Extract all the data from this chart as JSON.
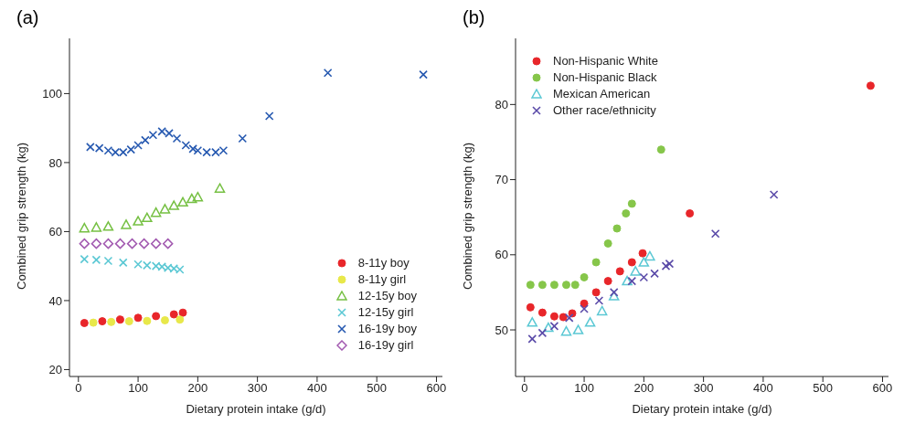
{
  "chart_data": [
    {
      "type": "scatter",
      "title": "(a)",
      "xlabel": "Dietary protein intake (g/d)",
      "ylabel": "Combined grip strength (kg)",
      "xlim": [
        -15,
        610
      ],
      "xticks": [
        0,
        100,
        200,
        300,
        400,
        500,
        600
      ],
      "ylim": [
        18,
        116
      ],
      "yticks": [
        20,
        40,
        60,
        80,
        100
      ],
      "grid": false,
      "legend": "bottom right",
      "series": [
        {
          "name": "8-11y boy",
          "color": "#e8262a",
          "marker": "circle",
          "x": [
            10,
            40,
            70,
            100,
            130,
            160,
            175
          ],
          "values": [
            33.5,
            34,
            34.5,
            35,
            35.5,
            36,
            36.5
          ]
        },
        {
          "name": "8-11y girl",
          "color": "#e8e84a",
          "marker": "circle",
          "x": [
            25,
            55,
            85,
            115,
            145,
            170
          ],
          "values": [
            33.6,
            33.8,
            34,
            34.1,
            34.3,
            34.5
          ]
        },
        {
          "name": "12-15y boy",
          "color": "#76c043",
          "marker": "triangle",
          "x": [
            10,
            30,
            50,
            80,
            100,
            115,
            130,
            145,
            160,
            175,
            190,
            200,
            237
          ],
          "values": [
            61,
            61.2,
            61.5,
            62,
            63,
            64,
            65.5,
            66.5,
            67.5,
            68.5,
            69.5,
            70,
            72.5
          ]
        },
        {
          "name": "12-15y girl",
          "color": "#5bc8d4",
          "marker": "cross",
          "x": [
            10,
            30,
            50,
            75,
            100,
            115,
            130,
            140,
            150,
            160,
            170
          ],
          "values": [
            52,
            51.8,
            51.5,
            51,
            50.5,
            50.2,
            50,
            49.8,
            49.5,
            49.3,
            49
          ]
        },
        {
          "name": "16-19y boy",
          "color": "#2558b0",
          "marker": "cross",
          "x": [
            20,
            35,
            50,
            62,
            75,
            88,
            100,
            112,
            125,
            140,
            152,
            165,
            180,
            192,
            200,
            215,
            230,
            243,
            275,
            320,
            418,
            578
          ],
          "values": [
            84.5,
            84.2,
            83.5,
            83,
            83,
            83.8,
            85,
            86.5,
            88,
            89,
            88.5,
            87,
            85,
            84,
            83.5,
            83,
            83,
            83.5,
            87,
            93.5,
            106,
            105.5
          ]
        },
        {
          "name": "16-19y girl",
          "color": "#a25ab0",
          "marker": "diamond",
          "x": [
            10,
            30,
            50,
            70,
            90,
            110,
            130,
            150
          ],
          "values": [
            56.5,
            56.5,
            56.5,
            56.5,
            56.5,
            56.5,
            56.5,
            56.5
          ]
        }
      ]
    },
    {
      "type": "scatter",
      "title": "(b)",
      "xlabel": "Dietary protein intake (g/d)",
      "ylabel": "Combined grip strength (kg)",
      "xlim": [
        -15,
        610
      ],
      "xticks": [
        0,
        100,
        200,
        300,
        400,
        500,
        600
      ],
      "ylim": [
        43.8,
        88.8
      ],
      "yticks": [
        50,
        60,
        70,
        80
      ],
      "grid": false,
      "legend": "top left",
      "series": [
        {
          "name": "Non-Hispanic White",
          "color": "#e8262a",
          "marker": "circle",
          "x": [
            10,
            30,
            50,
            65,
            80,
            100,
            120,
            140,
            160,
            180,
            198,
            277,
            580
          ],
          "values": [
            53,
            52.3,
            51.8,
            51.7,
            52.2,
            53.5,
            55,
            56.5,
            57.8,
            59,
            60.2,
            65.5,
            82.5
          ]
        },
        {
          "name": "Non-Hispanic Black",
          "color": "#86c64a",
          "marker": "circle",
          "x": [
            10,
            30,
            50,
            70,
            85,
            100,
            120,
            140,
            155,
            170,
            180,
            229
          ],
          "values": [
            56,
            56,
            56,
            56,
            56,
            57,
            59,
            61.5,
            63.5,
            65.5,
            66.8,
            74
          ]
        },
        {
          "name": "Mexican American",
          "color": "#5bc8d4",
          "marker": "triangle",
          "x": [
            13,
            40,
            70,
            90,
            110,
            130,
            150,
            172,
            186,
            200,
            210
          ],
          "values": [
            51,
            50.3,
            49.8,
            50,
            51,
            52.5,
            54.5,
            56.5,
            57.8,
            59,
            59.8
          ]
        },
        {
          "name": "Other race/ethnicity",
          "color": "#5a4aa8",
          "marker": "cross",
          "x": [
            13,
            30,
            50,
            75,
            100,
            125,
            150,
            180,
            200,
            218,
            237,
            243,
            320,
            418
          ],
          "values": [
            48.8,
            49.6,
            50.5,
            51.6,
            52.8,
            53.9,
            55,
            56.5,
            57,
            57.5,
            58.5,
            58.8,
            62.8,
            68
          ]
        }
      ]
    }
  ]
}
